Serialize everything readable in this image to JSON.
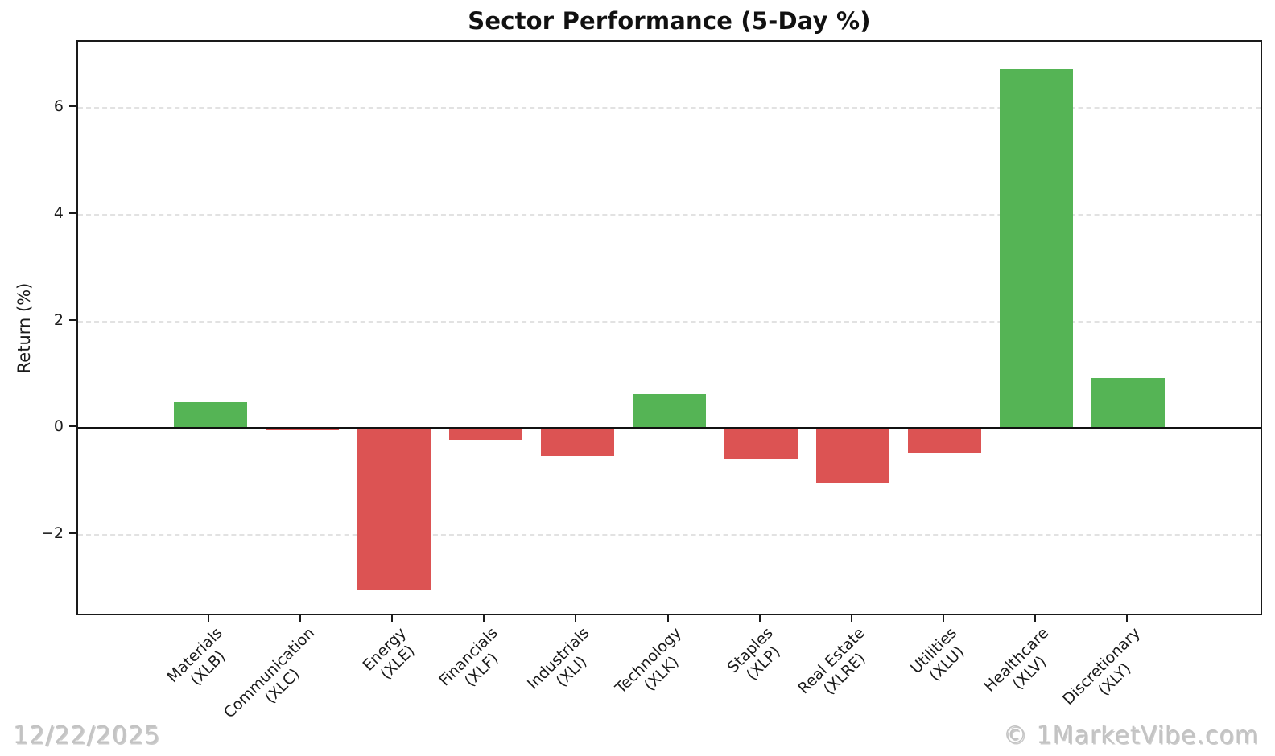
{
  "page": {
    "date_stamp": "12/22/2025",
    "watermark": "© 1MarketVibe.com"
  },
  "chart_data": {
    "type": "bar",
    "title": "Sector Performance (5-Day %)",
    "xlabel": "",
    "ylabel": "Return (%)",
    "legend_position": "none",
    "grid": "horizontal-dashed",
    "zero_line": true,
    "ylim": [
      -3.48,
      7.24
    ],
    "yticks": [
      -2,
      0,
      2,
      4,
      6
    ],
    "categories": [
      "Materials (XLB)",
      "Communication (XLC)",
      "Energy (XLE)",
      "Financials (XLF)",
      "Industrials (XLI)",
      "Technology (XLK)",
      "Staples (XLP)",
      "Real Estate (XLRE)",
      "Utilities (XLU)",
      "Healthcare (XLV)",
      "Discretionary (XLY)"
    ],
    "series": [
      {
        "sector": "Materials",
        "ticker": "(XLB)",
        "value": 0.49
      },
      {
        "sector": "Communication",
        "ticker": "(XLC)",
        "value": -0.04
      },
      {
        "sector": "Energy",
        "ticker": "(XLE)",
        "value": -3.03
      },
      {
        "sector": "Financials",
        "ticker": "(XLF)",
        "value": -0.23
      },
      {
        "sector": "Industrials",
        "ticker": "(XLI)",
        "value": -0.52
      },
      {
        "sector": "Technology",
        "ticker": "(XLK)",
        "value": 0.63
      },
      {
        "sector": "Staples",
        "ticker": "(XLP)",
        "value": -0.59
      },
      {
        "sector": "Real Estate",
        "ticker": "(XLRE)",
        "value": -1.03
      },
      {
        "sector": "Utilities",
        "ticker": "(XLU)",
        "value": -0.46
      },
      {
        "sector": "Healthcare",
        "ticker": "(XLV)",
        "value": 6.73
      },
      {
        "sector": "Discretionary",
        "ticker": "(XLY)",
        "value": 0.94
      }
    ],
    "colors": {
      "positive": "#55b455",
      "negative": "#dc5353",
      "gridline": "#e2e2e2",
      "axis": "#1a1a1a"
    },
    "bar_width_fraction": 0.8,
    "x_margin_slots": 0.94
  }
}
